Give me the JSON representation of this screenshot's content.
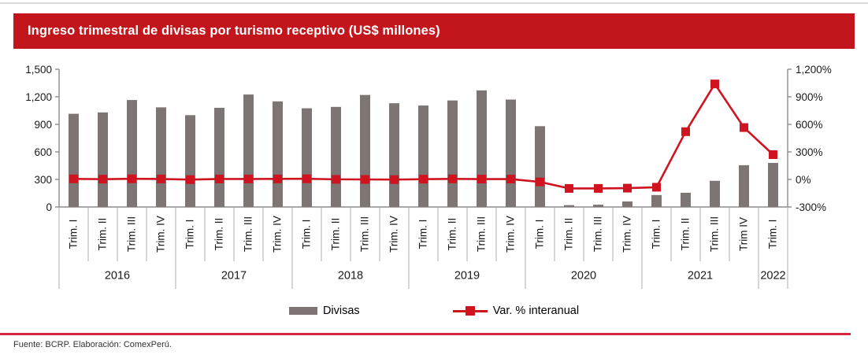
{
  "header": {
    "title": "Ingreso trimestral de divisas por turismo receptivo (US$ millones)"
  },
  "legend": {
    "bars_label": "Divisas",
    "line_label": "Var. % interanual"
  },
  "footer": {
    "source": "Fuente: BCRP. Elaboración: ComexPerú."
  },
  "colors": {
    "banner_red": "#c3161c",
    "line_red": "#cf1420",
    "bar_gray": "#7d7573",
    "axis_line": "#8c8c8c",
    "separator": "#aeaeae",
    "text": "#1a1a1a",
    "footer_rule": "#d6273a",
    "top_rule": "#d9d9d9"
  },
  "chart_data": {
    "type": "bar+line",
    "title": "Ingreso trimestral de divisas por turismo receptivo (US$ millones)",
    "categories": [
      "Trim. I",
      "Trim. II",
      "Trim. III",
      "Trim. IV",
      "Trim. I",
      "Trim. II",
      "Trim. III",
      "Trim. IV",
      "Trim. I",
      "Trim. II",
      "Trim. III",
      "Trim. IV",
      "Trim. I",
      "Trim. II",
      "Trim. III",
      "Trim. IV",
      "Trim. I",
      "Trim. II",
      "Trim. III",
      "Trim. IV",
      "Trim. I",
      "Trim. II",
      "Trim. III",
      "Trim IV",
      "Trim. I"
    ],
    "year_groups": [
      {
        "year": "2016",
        "count": 4
      },
      {
        "year": "2017",
        "count": 4
      },
      {
        "year": "2018",
        "count": 4
      },
      {
        "year": "2019",
        "count": 4
      },
      {
        "year": "2020",
        "count": 4
      },
      {
        "year": "2021",
        "count": 4
      },
      {
        "year": "2022",
        "count": 1
      }
    ],
    "series": [
      {
        "name": "Divisas",
        "kind": "bar",
        "axis": "left",
        "values": [
          1015,
          1030,
          1165,
          1085,
          1000,
          1080,
          1225,
          1150,
          1075,
          1090,
          1220,
          1130,
          1105,
          1160,
          1270,
          1170,
          880,
          20,
          25,
          60,
          130,
          155,
          285,
          455,
          480
        ]
      },
      {
        "name": "Var. % interanual",
        "kind": "line",
        "axis": "right",
        "values": [
          6,
          3,
          7,
          5,
          -2,
          5,
          5,
          6,
          7,
          1,
          0,
          -2,
          3,
          6,
          4,
          4,
          -27,
          -98,
          -98,
          -95,
          -85,
          520,
          1040,
          565,
          270
        ]
      }
    ],
    "left_axis": {
      "min": 0,
      "max": 1500,
      "step": 300,
      "tick_labels": [
        "0",
        "300",
        "600",
        "900",
        "1,200",
        "1,500"
      ]
    },
    "right_axis": {
      "min": -300,
      "max": 1200,
      "step": 300,
      "tick_labels": [
        "-300%",
        "0%",
        "300%",
        "600%",
        "900%",
        "1,200%"
      ]
    },
    "grid": false,
    "legend_position": "bottom"
  }
}
